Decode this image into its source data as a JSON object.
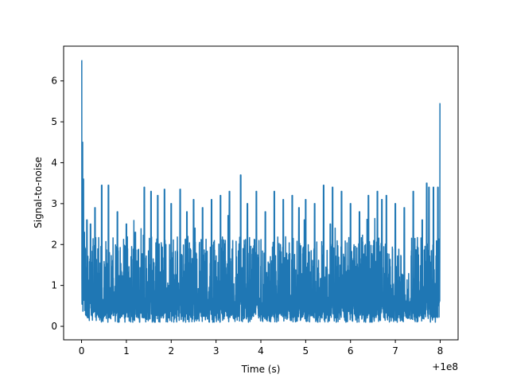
{
  "chart_data": {
    "type": "line",
    "title": "",
    "xlabel": "Time (s)",
    "ylabel": "Signal-to-noise",
    "x_offset_label": "+1e8",
    "xlim": [
      -0.4,
      8.4
    ],
    "ylim": [
      -0.33,
      6.85
    ],
    "xticks": [
      0,
      1,
      2,
      3,
      4,
      5,
      6,
      7,
      8
    ],
    "xtick_labels": [
      "0",
      "1",
      "2",
      "3",
      "4",
      "5",
      "6",
      "7",
      "8"
    ],
    "yticks": [
      0,
      1,
      2,
      3,
      4,
      5,
      6
    ],
    "ytick_labels": [
      "0",
      "1",
      "2",
      "3",
      "4",
      "5",
      "6"
    ],
    "grid": false,
    "series": [
      {
        "color": "#1f77b4",
        "x": [
          0,
          0.02,
          0.04,
          0.06,
          0.08,
          0.12,
          0.2,
          0.3,
          0.45,
          0.6,
          0.8,
          1.0,
          1.2,
          1.4,
          1.55,
          1.7,
          1.85,
          2.0,
          2.2,
          2.35,
          2.5,
          2.7,
          2.9,
          3.1,
          3.3,
          3.55,
          3.7,
          3.9,
          4.1,
          4.3,
          4.5,
          4.7,
          4.85,
          5.0,
          5.2,
          5.4,
          5.55,
          5.6,
          5.8,
          6.0,
          6.2,
          6.4,
          6.6,
          6.7,
          6.8,
          7.0,
          7.2,
          7.4,
          7.6,
          7.7,
          7.75,
          7.85,
          7.95,
          8.0
        ],
        "y": [
          6.5,
          4.5,
          3.6,
          2.3,
          1.9,
          2.6,
          2.5,
          2.9,
          3.45,
          3.45,
          2.8,
          2.5,
          2.3,
          3.4,
          3.3,
          3.2,
          3.35,
          3.0,
          3.35,
          2.8,
          3.1,
          2.9,
          3.1,
          3.2,
          3.3,
          3.7,
          3.0,
          3.3,
          2.8,
          3.3,
          3.1,
          3.2,
          2.9,
          3.1,
          3.0,
          3.45,
          2.5,
          3.4,
          3.3,
          3.0,
          2.8,
          3.2,
          3.3,
          3.1,
          3.2,
          3.0,
          2.9,
          3.3,
          2.6,
          3.5,
          3.4,
          3.4,
          3.4,
          5.45
        ],
        "noise_band": {
          "low": 0.1,
          "high": 2.2
        }
      }
    ]
  }
}
